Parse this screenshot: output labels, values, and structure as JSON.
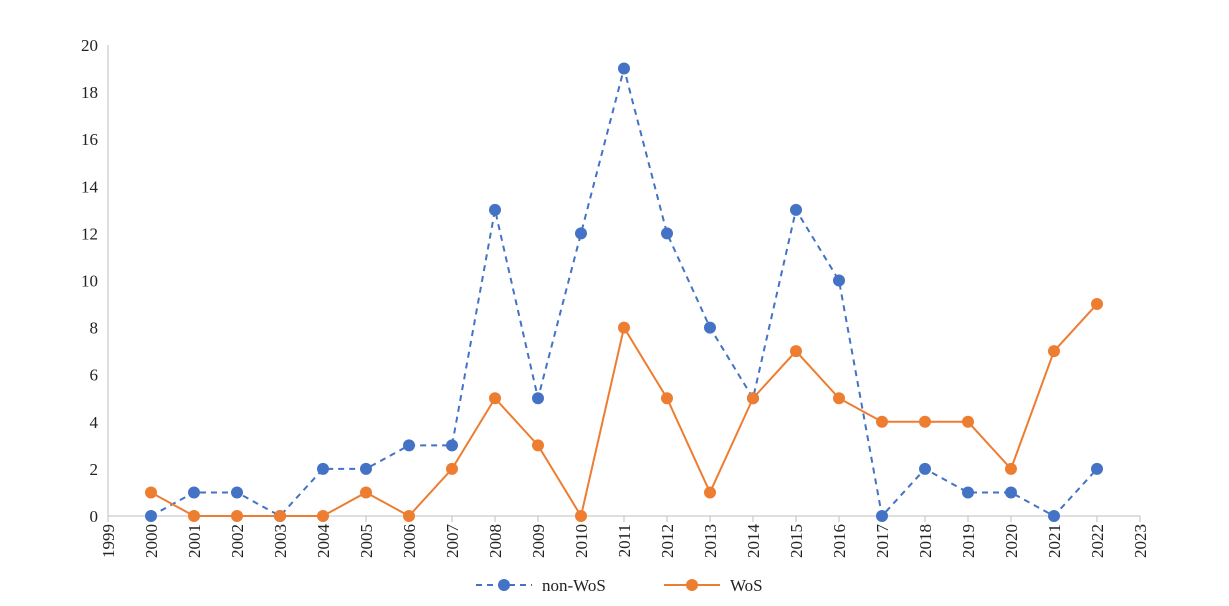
{
  "chart_data": {
    "type": "line",
    "title": "",
    "xlabel": "",
    "ylabel": "",
    "x_range": [
      1999,
      2023
    ],
    "x_ticks": [
      1999,
      2000,
      2001,
      2002,
      2003,
      2004,
      2005,
      2006,
      2007,
      2008,
      2009,
      2010,
      2011,
      2012,
      2013,
      2014,
      2015,
      2016,
      2017,
      2018,
      2019,
      2020,
      2021,
      2022,
      2023
    ],
    "x_tick_labels": [
      "1999",
      "2000",
      "2001",
      "2002",
      "2003",
      "2004",
      "2005",
      "2006",
      "2007",
      "2008",
      "2009",
      "2010",
      "2011",
      "2012",
      "2013",
      "2014",
      "2015",
      "2016",
      "2017",
      "2018",
      "2019",
      "2020",
      "2021",
      "2022",
      "2023"
    ],
    "ylim": [
      0,
      20
    ],
    "y_ticks": [
      0,
      2,
      4,
      6,
      8,
      10,
      12,
      14,
      16,
      18,
      20
    ],
    "y_tick_labels": [
      "0",
      "2",
      "4",
      "6",
      "8",
      "10",
      "12",
      "14",
      "16",
      "18",
      "20"
    ],
    "grid": false,
    "legend_position": "bottom",
    "x": [
      2000,
      2001,
      2002,
      2003,
      2004,
      2005,
      2006,
      2007,
      2008,
      2009,
      2010,
      2011,
      2012,
      2013,
      2014,
      2015,
      2016,
      2017,
      2018,
      2019,
      2020,
      2021,
      2022
    ],
    "series": [
      {
        "name": "non-WoS",
        "color": "#4472c4",
        "line_style": "dashed",
        "values": [
          0,
          1,
          1,
          0,
          2,
          2,
          3,
          3,
          13,
          5,
          12,
          19,
          12,
          8,
          5,
          13,
          10,
          0,
          2,
          1,
          1,
          0,
          2
        ]
      },
      {
        "name": "WoS",
        "color": "#ed7d31",
        "line_style": "solid",
        "values": [
          1,
          0,
          0,
          0,
          0,
          1,
          0,
          2,
          5,
          3,
          0,
          8,
          5,
          1,
          5,
          7,
          5,
          4,
          4,
          4,
          2,
          7,
          9
        ]
      }
    ]
  }
}
